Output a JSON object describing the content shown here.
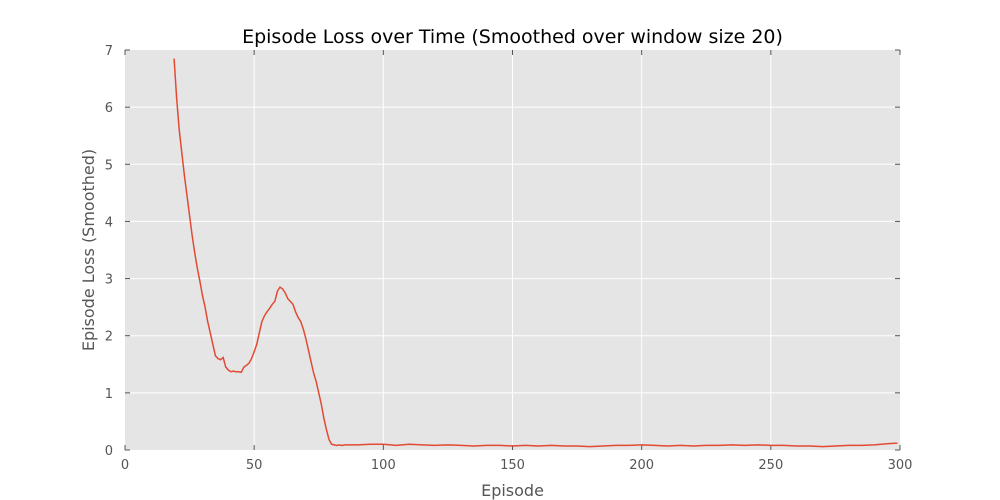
{
  "chart_data": {
    "type": "line",
    "title": "Episode Loss over Time (Smoothed over window size 20)",
    "xlabel": "Episode",
    "ylabel": "Episode Loss (Smoothed)",
    "xlim": [
      0,
      300
    ],
    "ylim": [
      0,
      7
    ],
    "xticks": [
      0,
      50,
      100,
      150,
      200,
      250,
      300
    ],
    "yticks": [
      0,
      1,
      2,
      3,
      4,
      5,
      6,
      7
    ],
    "grid": true,
    "colors": {
      "line": "#e24a33",
      "plot_background": "#e5e5e5",
      "grid": "#ffffff"
    },
    "series": [
      {
        "x": [
          19,
          20,
          21,
          22,
          23,
          24,
          25,
          26,
          27,
          28,
          29,
          30,
          31,
          32,
          33,
          34,
          35,
          36,
          37,
          38,
          39,
          40,
          41,
          42,
          43,
          44,
          45,
          46,
          47,
          48,
          49,
          50,
          51,
          52,
          53,
          54,
          55,
          56,
          57,
          58,
          59,
          60,
          61,
          62,
          63,
          64,
          65,
          66,
          67,
          68,
          69,
          70,
          71,
          72,
          73,
          74,
          75,
          76,
          77,
          78,
          79,
          80,
          81,
          82,
          83,
          84,
          85,
          90,
          95,
          100,
          105,
          110,
          115,
          120,
          125,
          130,
          135,
          140,
          145,
          150,
          155,
          160,
          165,
          170,
          175,
          180,
          185,
          190,
          195,
          200,
          205,
          210,
          215,
          220,
          225,
          230,
          235,
          240,
          245,
          250,
          255,
          260,
          265,
          270,
          275,
          280,
          285,
          290,
          295,
          299
        ],
        "y": [
          6.85,
          6.15,
          5.6,
          5.2,
          4.8,
          4.45,
          4.1,
          3.75,
          3.45,
          3.18,
          2.95,
          2.7,
          2.5,
          2.25,
          2.05,
          1.85,
          1.65,
          1.6,
          1.58,
          1.62,
          1.45,
          1.4,
          1.37,
          1.38,
          1.37,
          1.37,
          1.36,
          1.45,
          1.48,
          1.52,
          1.6,
          1.72,
          1.85,
          2.05,
          2.25,
          2.35,
          2.42,
          2.48,
          2.55,
          2.6,
          2.78,
          2.85,
          2.82,
          2.75,
          2.65,
          2.6,
          2.55,
          2.42,
          2.32,
          2.25,
          2.12,
          1.95,
          1.75,
          1.55,
          1.35,
          1.2,
          1.0,
          0.8,
          0.55,
          0.35,
          0.18,
          0.1,
          0.09,
          0.08,
          0.09,
          0.08,
          0.09,
          0.09,
          0.1,
          0.1,
          0.08,
          0.1,
          0.09,
          0.08,
          0.09,
          0.08,
          0.07,
          0.08,
          0.08,
          0.07,
          0.08,
          0.07,
          0.08,
          0.07,
          0.07,
          0.06,
          0.07,
          0.08,
          0.08,
          0.09,
          0.08,
          0.07,
          0.08,
          0.07,
          0.08,
          0.08,
          0.09,
          0.08,
          0.09,
          0.08,
          0.08,
          0.07,
          0.07,
          0.06,
          0.07,
          0.08,
          0.08,
          0.09,
          0.11,
          0.12
        ]
      }
    ]
  }
}
